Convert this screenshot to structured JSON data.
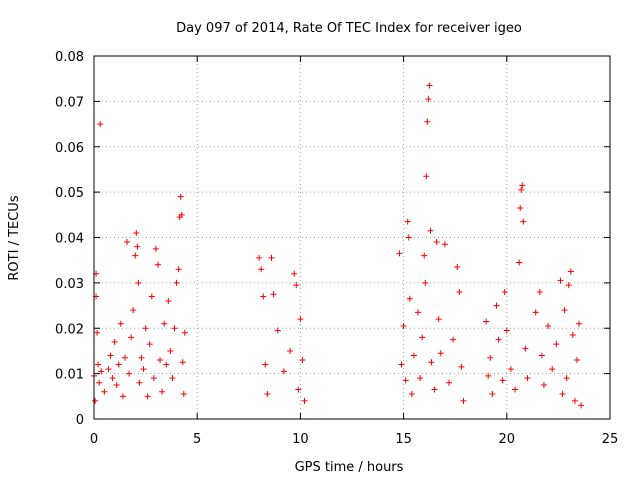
{
  "chart_data": {
    "type": "scatter",
    "title": "Day 097 of 2014, Rate Of TEC Index for receiver igeo",
    "xlabel": "GPS time / hours",
    "ylabel": "ROTI / TECUs",
    "xlim": [
      0,
      25
    ],
    "ylim": [
      0,
      0.08
    ],
    "x_ticks": [
      "0",
      "5",
      "10",
      "15",
      "20",
      "25"
    ],
    "y_ticks": [
      "0",
      "0.01",
      "0.02",
      "0.03",
      "0.04",
      "0.05",
      "0.06",
      "0.07",
      "0.08"
    ],
    "grid": true,
    "legend": "none",
    "marker": "plus",
    "color": "#ff0000",
    "series": [
      {
        "points": [
          [
            0.0,
            0.0095
          ],
          [
            0.05,
            0.004
          ],
          [
            0.1,
            0.032
          ],
          [
            0.1,
            0.027
          ],
          [
            0.15,
            0.019
          ],
          [
            0.2,
            0.012
          ],
          [
            0.25,
            0.008
          ],
          [
            0.3,
            0.065
          ],
          [
            0.35,
            0.0105
          ],
          [
            0.5,
            0.006
          ],
          [
            0.7,
            0.011
          ],
          [
            0.8,
            0.014
          ],
          [
            0.9,
            0.009
          ],
          [
            1.0,
            0.017
          ],
          [
            1.1,
            0.0075
          ],
          [
            1.2,
            0.012
          ],
          [
            1.3,
            0.021
          ],
          [
            1.4,
            0.005
          ],
          [
            1.5,
            0.0135
          ],
          [
            1.6,
            0.039
          ],
          [
            1.7,
            0.01
          ],
          [
            1.8,
            0.018
          ],
          [
            1.9,
            0.024
          ],
          [
            2.0,
            0.036
          ],
          [
            2.05,
            0.041
          ],
          [
            2.1,
            0.038
          ],
          [
            2.15,
            0.03
          ],
          [
            2.2,
            0.008
          ],
          [
            2.3,
            0.0135
          ],
          [
            2.4,
            0.011
          ],
          [
            2.5,
            0.02
          ],
          [
            2.6,
            0.005
          ],
          [
            2.7,
            0.0165
          ],
          [
            2.8,
            0.027
          ],
          [
            2.9,
            0.009
          ],
          [
            3.0,
            0.0375
          ],
          [
            3.1,
            0.034
          ],
          [
            3.2,
            0.013
          ],
          [
            3.3,
            0.006
          ],
          [
            3.4,
            0.021
          ],
          [
            3.5,
            0.012
          ],
          [
            3.6,
            0.026
          ],
          [
            3.7,
            0.015
          ],
          [
            3.8,
            0.009
          ],
          [
            3.9,
            0.02
          ],
          [
            4.0,
            0.03
          ],
          [
            4.1,
            0.033
          ],
          [
            4.15,
            0.0445
          ],
          [
            4.2,
            0.049
          ],
          [
            4.25,
            0.045
          ],
          [
            4.3,
            0.0125
          ],
          [
            4.35,
            0.0055
          ],
          [
            4.4,
            0.019
          ],
          [
            8.0,
            0.0355
          ],
          [
            8.1,
            0.033
          ],
          [
            8.2,
            0.027
          ],
          [
            8.3,
            0.012
          ],
          [
            8.4,
            0.0055
          ],
          [
            8.6,
            0.0355
          ],
          [
            8.7,
            0.0275
          ],
          [
            8.9,
            0.0195
          ],
          [
            9.2,
            0.0105
          ],
          [
            9.5,
            0.015
          ],
          [
            9.7,
            0.032
          ],
          [
            9.8,
            0.0295
          ],
          [
            9.9,
            0.0065
          ],
          [
            10.0,
            0.022
          ],
          [
            10.1,
            0.013
          ],
          [
            10.2,
            0.004
          ],
          [
            14.8,
            0.0365
          ],
          [
            14.9,
            0.012
          ],
          [
            15.0,
            0.0205
          ],
          [
            15.1,
            0.0085
          ],
          [
            15.2,
            0.0435
          ],
          [
            15.25,
            0.04
          ],
          [
            15.3,
            0.0265
          ],
          [
            15.4,
            0.0055
          ],
          [
            15.5,
            0.014
          ],
          [
            15.7,
            0.0235
          ],
          [
            15.8,
            0.009
          ],
          [
            15.9,
            0.018
          ],
          [
            16.0,
            0.036
          ],
          [
            16.05,
            0.03
          ],
          [
            16.1,
            0.0535
          ],
          [
            16.15,
            0.0655
          ],
          [
            16.2,
            0.0705
          ],
          [
            16.25,
            0.0735
          ],
          [
            16.3,
            0.0415
          ],
          [
            16.35,
            0.0125
          ],
          [
            16.5,
            0.0065
          ],
          [
            16.6,
            0.039
          ],
          [
            16.7,
            0.022
          ],
          [
            16.8,
            0.0145
          ],
          [
            17.0,
            0.0385
          ],
          [
            17.2,
            0.008
          ],
          [
            17.4,
            0.0175
          ],
          [
            17.6,
            0.0335
          ],
          [
            17.7,
            0.028
          ],
          [
            17.8,
            0.0115
          ],
          [
            17.9,
            0.004
          ],
          [
            19.0,
            0.0215
          ],
          [
            19.1,
            0.0095
          ],
          [
            19.2,
            0.0135
          ],
          [
            19.3,
            0.0055
          ],
          [
            19.5,
            0.025
          ],
          [
            19.6,
            0.0175
          ],
          [
            19.8,
            0.0085
          ],
          [
            19.9,
            0.028
          ],
          [
            20.0,
            0.0195
          ],
          [
            20.2,
            0.011
          ],
          [
            20.4,
            0.0065
          ],
          [
            20.6,
            0.0345
          ],
          [
            20.65,
            0.0465
          ],
          [
            20.7,
            0.0505
          ],
          [
            20.75,
            0.0515
          ],
          [
            20.8,
            0.0435
          ],
          [
            20.9,
            0.0155
          ],
          [
            21.0,
            0.009
          ],
          [
            21.4,
            0.0235
          ],
          [
            21.6,
            0.028
          ],
          [
            21.7,
            0.014
          ],
          [
            21.8,
            0.0075
          ],
          [
            22.0,
            0.0205
          ],
          [
            22.2,
            0.011
          ],
          [
            22.4,
            0.0165
          ],
          [
            22.6,
            0.0305
          ],
          [
            22.7,
            0.0055
          ],
          [
            22.8,
            0.024
          ],
          [
            22.9,
            0.009
          ],
          [
            23.0,
            0.0295
          ],
          [
            23.1,
            0.0325
          ],
          [
            23.2,
            0.0185
          ],
          [
            23.3,
            0.004
          ],
          [
            23.4,
            0.013
          ],
          [
            23.5,
            0.021
          ],
          [
            23.6,
            0.003
          ]
        ]
      }
    ]
  }
}
